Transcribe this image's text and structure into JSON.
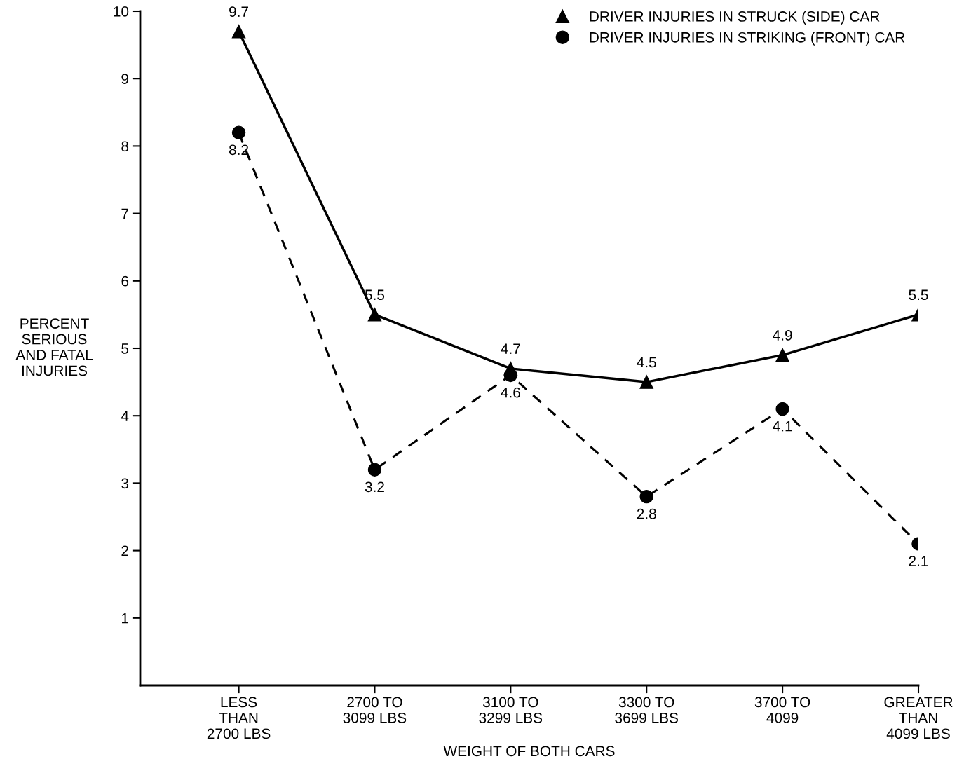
{
  "chart_data": {
    "type": "line",
    "xlabel": "WEIGHT OF BOTH CARS",
    "ylabel": "PERCENT\nSERIOUS\nAND FATAL\nINJURIES",
    "categories": [
      "LESS\nTHAN\n2700 LBS",
      "2700 TO\n3099 LBS",
      "3100 TO\n3299 LBS",
      "3300 TO\n3699 LBS",
      "3700 TO\n4099",
      "GREATER\nTHAN\n4099 LBS"
    ],
    "series": [
      {
        "name": "DRIVER INJURIES IN STRUCK (SIDE) CAR",
        "color": "#000000",
        "marker": "triangle",
        "line_style": "solid",
        "values": [
          9.7,
          5.5,
          4.7,
          4.5,
          4.9,
          5.5
        ]
      },
      {
        "name": "DRIVER INJURIES IN STRIKING (FRONT) CAR",
        "color": "#000000",
        "marker": "circle",
        "line_style": "dashed",
        "values": [
          8.2,
          3.2,
          4.6,
          2.8,
          4.1,
          2.1
        ]
      }
    ],
    "ylim": [
      0,
      10
    ],
    "yticks": [
      1,
      2,
      3,
      4,
      5,
      6,
      7,
      8,
      9,
      10
    ],
    "data_labels": true,
    "legend": "top right",
    "grid": false
  }
}
